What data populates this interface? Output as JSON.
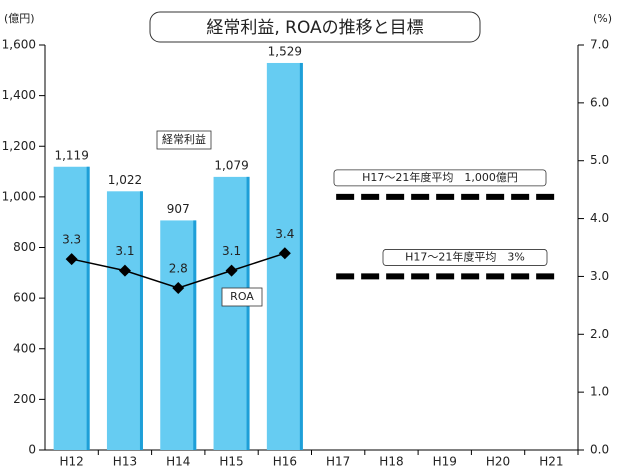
{
  "chart_data": {
    "type": "bar",
    "title": "経常利益, ROAの推移と目標",
    "y_label": "(億円)",
    "y2_label": "(%)",
    "categories": [
      "H12",
      "H13",
      "H14",
      "H15",
      "H16",
      "H17",
      "H18",
      "H19",
      "H20",
      "H21"
    ],
    "series": [
      {
        "name": "経常利益",
        "type": "bar",
        "color": "#66ccf2",
        "values": [
          1119,
          1022,
          907,
          1079,
          1529,
          null,
          null,
          null,
          null,
          null
        ],
        "value_labels": [
          "1,119",
          "1,022",
          "907",
          "1,079",
          "1,529",
          null,
          null,
          null,
          null,
          null
        ]
      },
      {
        "name": "ROA",
        "type": "line",
        "axis": "y2",
        "color": "#000000",
        "values": [
          3.3,
          3.1,
          2.8,
          3.1,
          3.4,
          null,
          null,
          null,
          null,
          null
        ]
      }
    ],
    "targets": [
      {
        "label": "H17～21年度平均　1,000億円",
        "value": 1000,
        "axis": "y"
      },
      {
        "label": "H17～21年度平均　3%",
        "value": 3,
        "axis": "y2"
      }
    ],
    "ylim": [
      0,
      1600
    ],
    "yticks": [
      0,
      200,
      400,
      600,
      800,
      {
        "value": 1000,
        "label": "1,000"
      },
      {
        "value": 1200,
        "label": "1,200"
      },
      {
        "value": 1400,
        "label": "1,400"
      },
      {
        "value": 1600,
        "label": "1,600"
      }
    ],
    "y2lim": [
      0,
      7
    ],
    "y2ticks": [
      {
        "value": 0,
        "label": "0.0"
      },
      {
        "value": 1,
        "label": "1.0"
      },
      {
        "value": 2,
        "label": "2.0"
      },
      {
        "value": 3,
        "label": "3.0"
      },
      {
        "value": 4,
        "label": "4.0"
      },
      {
        "value": 5,
        "label": "5.0"
      },
      {
        "value": 6,
        "label": "6.0"
      },
      {
        "value": 7,
        "label": "7.0"
      }
    ]
  }
}
